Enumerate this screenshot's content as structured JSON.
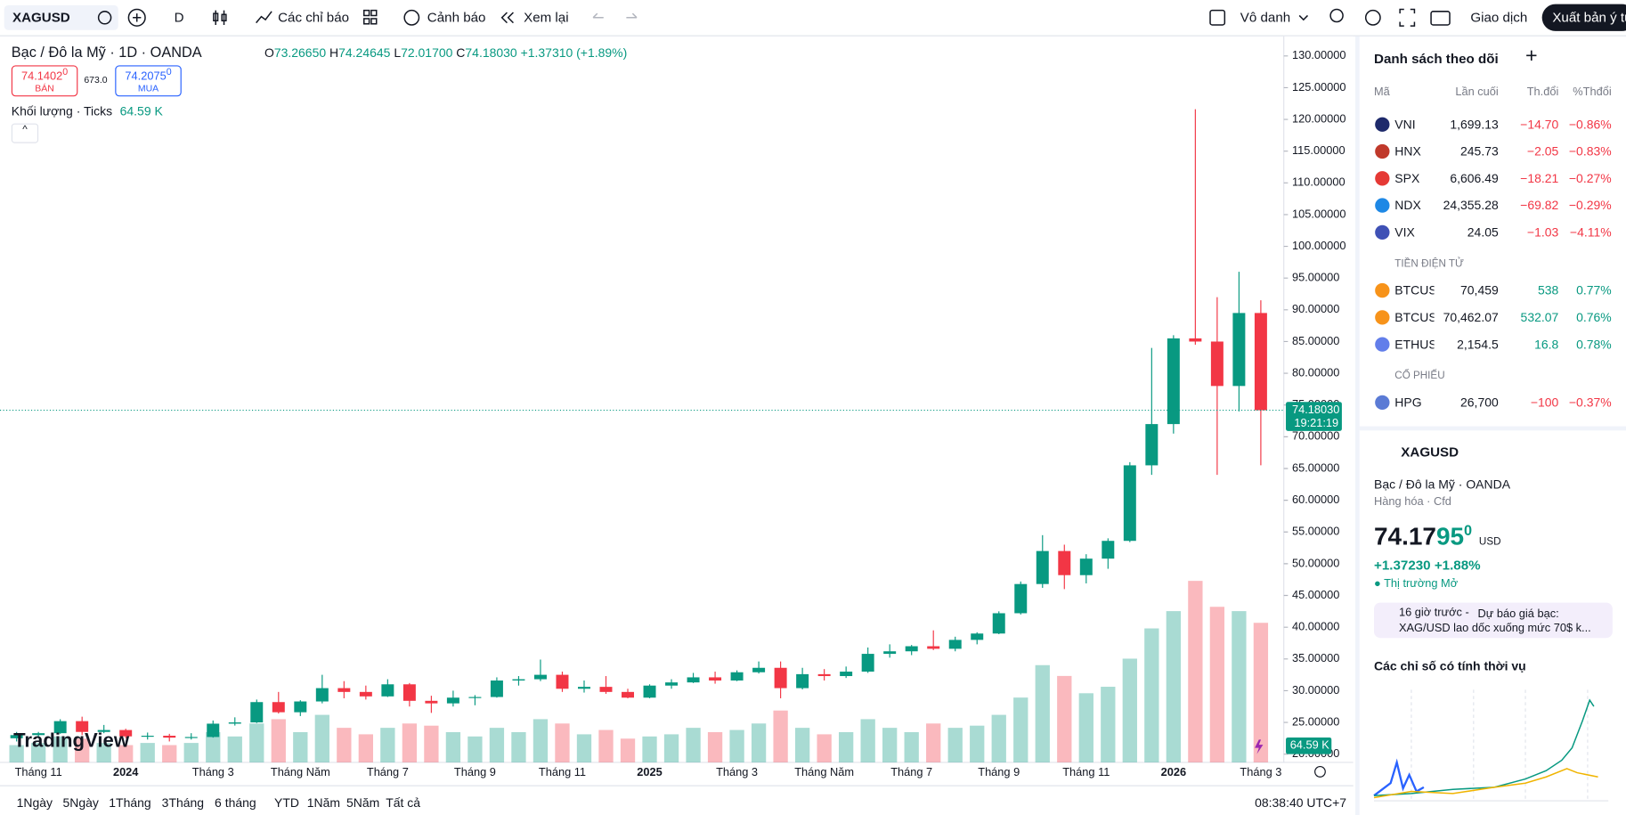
{
  "toolbar": {
    "symbol": "XAGUSD",
    "interval": "D",
    "indicators": "Các chỉ báo",
    "alert": "Cảnh báo",
    "replay": "Xem lại",
    "layout": "Vô danh",
    "trade": "Giao dịch",
    "publish": "Xuất bản ý tư"
  },
  "legend": {
    "title": "Bạc / Đô la Mỹ · 1D · OANDA",
    "o_label": "O",
    "o": "73.26650",
    "h_label": "H",
    "h": "74.24645",
    "l_label": "L",
    "l": "72.01700",
    "c_label": "C",
    "c": "74.18030",
    "change": "+1.37310 (+1.89%)"
  },
  "order": {
    "sell": "74.1402",
    "sell_frac": "0",
    "sell_label": "BÁN",
    "spread": "673.0",
    "buy": "74.2075",
    "buy_frac": "0",
    "buy_label": "MUA"
  },
  "volume_legend": {
    "label": "Khối lượng · Ticks",
    "value": "64.59 K"
  },
  "chart_data": {
    "type": "candlestick",
    "categories": [
      null,
      "Tháng 11",
      null,
      null,
      null,
      "2024",
      null,
      null,
      null,
      "Tháng 3",
      null,
      null,
      null,
      "Tháng Năm",
      null,
      null,
      null,
      "Tháng 7",
      null,
      null,
      null,
      "Tháng 9",
      null,
      null,
      null,
      "Tháng 11",
      null,
      null,
      null,
      "2025",
      null,
      null,
      null,
      "Tháng 3",
      null,
      null,
      null,
      "Tháng Năm",
      null,
      null,
      null,
      "Tháng 7",
      null,
      null,
      null,
      "Tháng 9",
      null,
      null,
      null,
      "Tháng 11",
      null,
      null,
      null,
      "2026",
      null,
      null,
      null,
      "Tháng 3"
    ],
    "open": [
      22.5,
      23.0,
      23.3,
      25.2,
      23.5,
      23.8,
      22.8,
      22.9,
      22.6,
      22.7,
      24.8,
      25.0,
      28.2,
      26.6,
      28.3,
      30.4,
      29.8,
      29.1,
      31.0,
      28.4,
      28.0,
      28.9,
      29.0,
      31.6,
      31.8,
      32.5,
      30.3,
      30.6,
      29.8,
      28.9,
      30.8,
      31.3,
      32.1,
      31.6,
      32.9,
      33.6,
      30.4,
      32.6,
      32.3,
      33.0,
      35.8,
      36.2,
      37.0,
      36.6,
      38.0,
      39.0,
      42.2,
      46.8,
      52.0,
      48.2,
      50.8,
      53.6,
      65.5,
      72.0,
      85.5,
      85.0,
      78.0,
      89.5
    ],
    "high": [
      23.5,
      23.5,
      25.5,
      25.9,
      24.6,
      24.0,
      23.4,
      23.2,
      23.3,
      25.3,
      25.8,
      28.6,
      29.8,
      28.5,
      32.5,
      31.5,
      30.8,
      31.8,
      31.2,
      29.2,
      30.0,
      29.3,
      32.1,
      32.3,
      34.9,
      33.0,
      31.6,
      32.3,
      30.3,
      31.0,
      31.8,
      32.8,
      33.0,
      33.2,
      34.6,
      34.6,
      33.6,
      33.4,
      33.8,
      36.8,
      37.3,
      37.2,
      39.5,
      38.5,
      39.2,
      42.5,
      47.2,
      54.5,
      53.0,
      51.5,
      54.0,
      66.0,
      84.0,
      86.0,
      121.6,
      92.0,
      96.0,
      91.5
    ],
    "low": [
      22.0,
      22.6,
      23.2,
      23.0,
      23.3,
      22.5,
      22.3,
      22.0,
      22.3,
      22.6,
      24.5,
      24.9,
      26.4,
      26.0,
      28.0,
      28.8,
      28.6,
      29.0,
      27.5,
      26.5,
      27.5,
      27.7,
      28.9,
      30.8,
      31.5,
      29.8,
      29.7,
      29.5,
      28.8,
      28.8,
      30.3,
      31.2,
      31.1,
      31.5,
      32.7,
      28.8,
      30.2,
      31.6,
      32.0,
      32.8,
      35.2,
      35.6,
      36.4,
      36.2,
      37.3,
      38.9,
      42.0,
      46.2,
      46.0,
      46.9,
      49.2,
      53.4,
      64.0,
      70.5,
      84.5,
      64.0,
      74.0,
      65.5
    ],
    "close": [
      23.0,
      23.3,
      25.2,
      23.5,
      23.8,
      22.8,
      22.9,
      22.6,
      22.7,
      24.8,
      25.0,
      28.2,
      26.6,
      28.3,
      30.4,
      29.8,
      29.1,
      31.0,
      28.4,
      28.0,
      28.9,
      29.0,
      31.6,
      31.8,
      32.5,
      30.3,
      30.6,
      29.8,
      28.9,
      30.8,
      31.3,
      32.1,
      31.6,
      32.9,
      33.6,
      30.4,
      32.6,
      32.3,
      33.0,
      35.8,
      36.2,
      37.0,
      36.6,
      38.0,
      39.0,
      42.2,
      46.8,
      52.0,
      48.2,
      50.8,
      53.6,
      65.5,
      72.0,
      85.5,
      85.0,
      78.0,
      89.5,
      74.18
    ],
    "volume": [
      8,
      9,
      12,
      11,
      9,
      8,
      9,
      8,
      9,
      14,
      12,
      18,
      20,
      14,
      22,
      16,
      13,
      16,
      18,
      17,
      14,
      12,
      16,
      14,
      20,
      18,
      13,
      15,
      11,
      12,
      13,
      16,
      14,
      15,
      18,
      24,
      16,
      13,
      14,
      20,
      16,
      14,
      18,
      16,
      17,
      22,
      30,
      45,
      40,
      32,
      35,
      48,
      62,
      70,
      84,
      72,
      70,
      64.59
    ],
    "up_color": "#089981",
    "down_color": "#f23645",
    "ylim": [
      18.7,
      132.6
    ],
    "yticks": [
      {
        "value": 20,
        "label": "20.00000"
      },
      {
        "value": 25,
        "label": "25.00000"
      },
      {
        "value": 30,
        "label": "30.00000"
      },
      {
        "value": 35,
        "label": "35.00000"
      },
      {
        "value": 40,
        "label": "40.00000"
      },
      {
        "value": 45,
        "label": "45.00000"
      },
      {
        "value": 50,
        "label": "50.00000"
      },
      {
        "value": 55,
        "label": "55.00000"
      },
      {
        "value": 60,
        "label": "60.00000"
      },
      {
        "value": 65,
        "label": "65.00000"
      },
      {
        "value": 70,
        "label": "70.00000"
      },
      {
        "value": 75,
        "label": "75.00000"
      },
      {
        "value": 80,
        "label": "80.00000"
      },
      {
        "value": 85,
        "label": "85.00000"
      },
      {
        "value": 90,
        "label": "90.00000"
      },
      {
        "value": 95,
        "label": "95.00000"
      },
      {
        "value": 100,
        "label": "100.00000"
      },
      {
        "value": 105,
        "label": "105.00000"
      },
      {
        "value": 110,
        "label": "110.00000"
      },
      {
        "value": 115,
        "label": "115.00000"
      },
      {
        "value": 120,
        "label": "120.00000"
      },
      {
        "value": 125,
        "label": "125.00000"
      },
      {
        "value": 130,
        "label": "130.00000"
      }
    ],
    "last_price": {
      "value": 74.1803,
      "label": "74.18030"
    },
    "countdown": "19:21:19",
    "last_volume_label": "64.59 K"
  },
  "bottom_bar": {
    "ranges": [
      "1Ngày",
      "5Ngày",
      "1Tháng",
      "3Tháng",
      "6 tháng",
      "YTD",
      "1Năm",
      "5Năm",
      "Tất cả"
    ],
    "time": "08:38:40 UTC+7"
  },
  "watchlist": {
    "title": "Danh sách theo dõi",
    "columns": [
      "Mã",
      "Lần cuối",
      "Th.đổi",
      "%Thđổi"
    ],
    "rows": [
      [
        "VNI",
        "1,699.13",
        "−14.70",
        "−0.86%"
      ],
      [
        "HNX",
        "245.73",
        "−2.05",
        "−0.83%"
      ],
      [
        "SPX",
        "6,606.49",
        "−18.21",
        "−0.27%"
      ],
      [
        "NDX",
        "24,355.28",
        "−69.82",
        "−0.29%"
      ],
      [
        "VIX",
        "24.05",
        "−1.03",
        "−4.11%"
      ]
    ],
    "section_crypto": "TIỀN ĐIỆN TỬ",
    "crypto_rows": [
      [
        "BTCUS",
        "70,459",
        "538",
        "0.77%"
      ],
      [
        "BTCUS",
        "70,462.07",
        "532.07",
        "0.76%"
      ],
      [
        "ETHUS",
        "2,154.5",
        "16.8",
        "0.78%"
      ]
    ],
    "section_stocks": "CỔ PHIẾU",
    "stock_rows": [
      [
        "HPG",
        "26,700",
        "−100",
        "−0.37%"
      ]
    ]
  },
  "details": {
    "symbol": "XAGUSD",
    "name": "Bạc / Đô la Mỹ",
    "exchange": "OANDA",
    "category": "Hàng hóa",
    "kind": "Cfd",
    "price_main": "74.17",
    "price_mid": "95",
    "price_frac": "0",
    "currency": "USD",
    "change": "+1.37230",
    "change_pct": "+1.88%",
    "status": "Thị trường Mở",
    "news_time": "16 giờ trước",
    "news_text": "Dự báo giá bạc: XAG/USD lao dốc xuống mức 70$ k...",
    "seasonal_title": "Các chỉ số có tính thời vụ"
  }
}
